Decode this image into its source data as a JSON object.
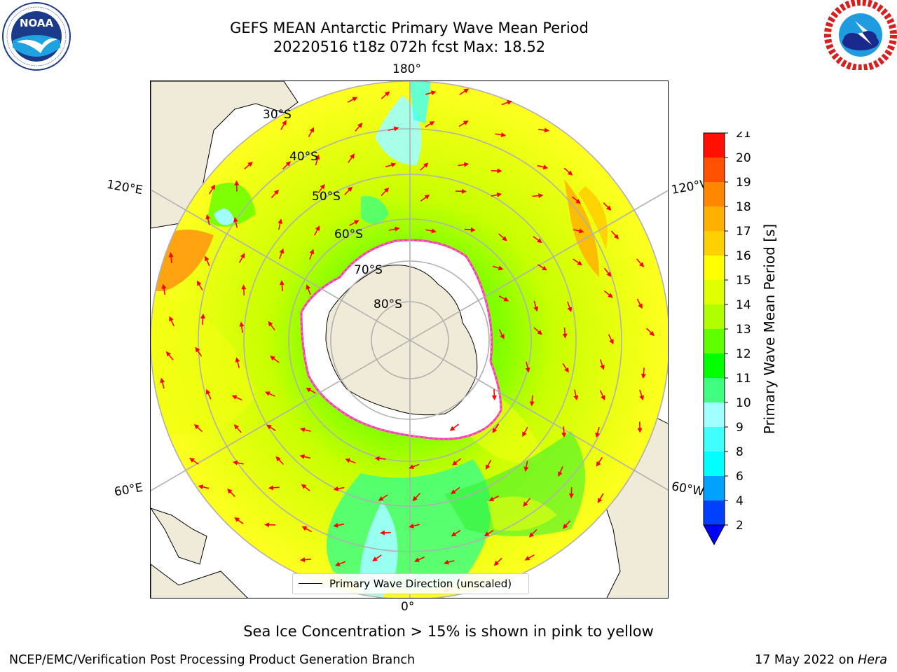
{
  "header": {
    "title_line1": "GEFS MEAN Antarctic Primary Wave Mean Period",
    "title_line2": "20220516 t18z 072h fcst   Max: 18.52"
  },
  "logos": {
    "noaa": {
      "text": "NOAA",
      "ring_text": "NATIONAL OCEANIC AND ATMOSPHERIC ADMINISTRATION · U.S. DEPARTMENT OF COMMERCE"
    },
    "nws": {
      "ring_text": "NATIONAL WEATHER SERVICE"
    }
  },
  "map": {
    "projection": "south-polar-stereographic",
    "longitude_labels": {
      "top": "180°",
      "bottom": "0°",
      "upper_left": "120°E",
      "upper_right": "120°W",
      "lower_left": "60°E",
      "lower_right": "60°W"
    },
    "latitude_labels": [
      "30°S",
      "40°S",
      "50°S",
      "60°S",
      "70°S",
      "80°S"
    ],
    "legend": {
      "label": "Primary Wave Direction (unscaled)",
      "line_color": "#000000"
    },
    "arrow_color": "#ff0000",
    "ice_edge_colors": [
      "#ff33cc",
      "#ffb347"
    ]
  },
  "colorbar": {
    "label": "Primary Wave Mean Period [s]",
    "ticks": [
      "2",
      "4",
      "6",
      "8",
      "9",
      "10",
      "11",
      "12",
      "13",
      "14",
      "15",
      "16",
      "17",
      "18",
      "19",
      "20",
      "21"
    ],
    "colors": [
      "#0040ff",
      "#00a0ff",
      "#00ffff",
      "#40ffff",
      "#a0ffff",
      "#40ff80",
      "#00ff00",
      "#60ff00",
      "#b0ff00",
      "#e0ff00",
      "#ffff00",
      "#ffd000",
      "#ffb000",
      "#ff8800",
      "#ff5000",
      "#ff1000"
    ],
    "extend_color": "#0000ff"
  },
  "subtitle": "Sea Ice Concentration > 15% is shown in pink to yellow",
  "footer": {
    "left": "NCEP/EMC/Verification Post Processing Product Generation Branch",
    "right_prefix": "17 May 2022 on",
    "right_host": "Hera"
  }
}
